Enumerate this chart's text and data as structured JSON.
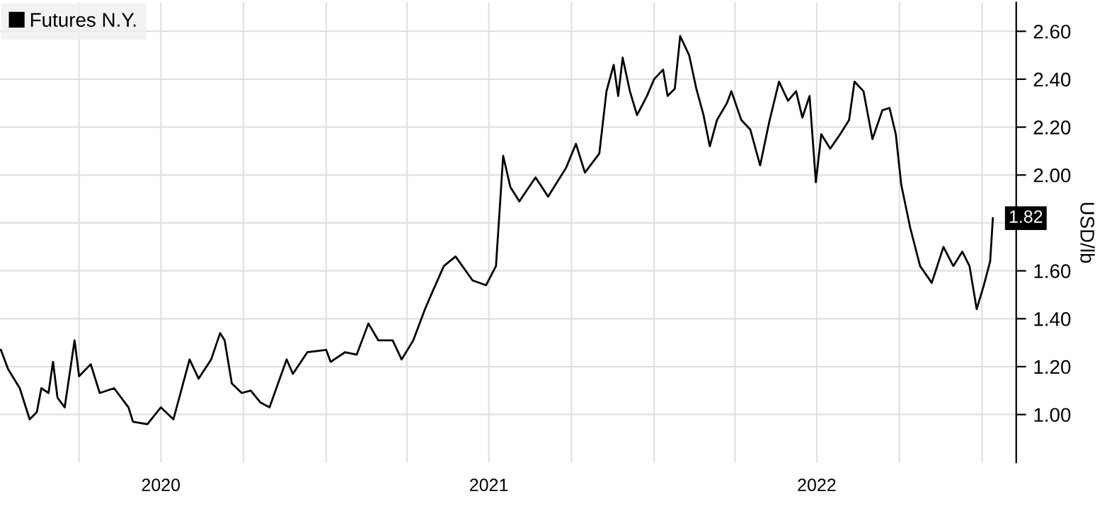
{
  "chart_data": {
    "type": "line",
    "x": [
      "2020-01-05",
      "2020-01-13",
      "2020-01-26",
      "2020-02-06",
      "2020-02-14",
      "2020-02-19",
      "2020-02-27",
      "2020-03-03",
      "2020-03-08",
      "2020-03-16",
      "2020-03-27",
      "2020-04-01",
      "2020-04-14",
      "2020-04-24",
      "2020-05-10",
      "2020-05-26",
      "2020-05-31",
      "2020-06-16",
      "2020-07-01",
      "2020-07-15",
      "2020-08-02",
      "2020-08-12",
      "2020-08-26",
      "2020-09-05",
      "2020-09-10",
      "2020-09-18",
      "2020-09-29",
      "2020-10-09",
      "2020-10-20",
      "2020-10-30",
      "2020-11-18",
      "2020-11-25",
      "2020-12-11",
      "2021-01-01",
      "2021-01-06",
      "2021-01-22",
      "2021-02-04",
      "2021-02-17",
      "2021-02-28",
      "2021-03-16",
      "2021-03-26",
      "2021-04-08",
      "2021-04-21",
      "2021-04-29",
      "2021-05-12",
      "2021-05-25",
      "2021-06-13",
      "2021-06-28",
      "2021-07-09",
      "2021-07-17",
      "2021-07-25",
      "2021-08-04",
      "2021-08-22",
      "2021-09-05",
      "2021-09-25",
      "2021-10-06",
      "2021-10-16",
      "2021-11-01",
      "2021-11-09",
      "2021-11-17",
      "2021-11-22",
      "2021-11-27",
      "2021-12-05",
      "2021-12-13",
      "2021-12-24",
      "2022-01-01",
      "2022-01-11",
      "2022-01-16",
      "2022-01-24",
      "2022-01-30",
      "2022-02-09",
      "2022-02-17",
      "2022-02-25",
      "2022-03-04",
      "2022-03-12",
      "2022-03-23",
      "2022-03-28",
      "2022-04-08",
      "2022-04-18",
      "2022-04-29",
      "2022-05-09",
      "2022-05-20",
      "2022-05-30",
      "2022-06-08",
      "2022-06-15",
      "2022-06-23",
      "2022-06-30",
      "2022-07-06",
      "2022-07-16",
      "2022-07-27",
      "2022-08-06",
      "2022-08-12",
      "2022-08-22",
      "2022-09-01",
      "2022-09-12",
      "2022-09-20",
      "2022-09-27",
      "2022-10-03",
      "2022-10-13",
      "2022-10-24",
      "2022-11-06",
      "2022-11-19",
      "2022-11-30",
      "2022-12-10",
      "2022-12-18",
      "2022-12-26",
      "2023-01-03",
      "2023-01-10",
      "2023-01-13"
    ],
    "series": [
      {
        "name": "Futures N.Y.",
        "color": "#000000",
        "values": [
          1.27,
          1.19,
          1.11,
          0.98,
          1.01,
          1.11,
          1.09,
          1.22,
          1.07,
          1.03,
          1.31,
          1.16,
          1.21,
          1.09,
          1.11,
          1.03,
          0.97,
          0.96,
          1.03,
          0.98,
          1.23,
          1.15,
          1.23,
          1.34,
          1.31,
          1.13,
          1.09,
          1.1,
          1.05,
          1.03,
          1.23,
          1.17,
          1.26,
          1.27,
          1.22,
          1.26,
          1.25,
          1.38,
          1.31,
          1.31,
          1.23,
          1.31,
          1.44,
          1.51,
          1.62,
          1.66,
          1.56,
          1.54,
          1.62,
          2.08,
          1.95,
          1.89,
          1.99,
          1.91,
          2.03,
          2.13,
          2.01,
          2.09,
          2.35,
          2.46,
          2.33,
          2.49,
          2.35,
          2.25,
          2.33,
          2.4,
          2.44,
          2.33,
          2.36,
          2.58,
          2.5,
          2.36,
          2.25,
          2.12,
          2.23,
          2.3,
          2.35,
          2.23,
          2.19,
          2.04,
          2.22,
          2.39,
          2.31,
          2.35,
          2.24,
          2.33,
          1.97,
          2.17,
          2.11,
          2.17,
          2.23,
          2.39,
          2.35,
          2.15,
          2.27,
          2.28,
          2.17,
          1.96,
          1.78,
          1.62,
          1.55,
          1.7,
          1.62,
          1.68,
          1.62,
          1.44,
          1.54,
          1.64,
          1.82
        ],
        "value_labels": [
          null,
          null,
          null,
          null,
          null,
          null,
          null,
          null,
          null,
          null,
          null,
          null,
          null,
          null,
          null,
          null,
          null,
          null,
          null,
          null,
          null,
          null,
          null,
          null,
          null,
          null,
          null,
          null,
          null,
          null,
          null,
          null,
          null,
          null,
          null,
          null,
          null,
          null,
          null,
          null,
          null,
          null,
          null,
          null,
          null,
          null,
          null,
          null,
          null,
          null,
          null,
          null,
          null,
          null,
          null,
          null,
          null,
          null,
          null,
          null,
          null,
          null,
          null,
          null,
          null,
          null,
          null,
          null,
          null,
          null,
          null,
          null,
          null,
          null,
          null,
          null,
          null,
          null,
          null,
          null,
          null,
          null,
          null,
          null,
          null,
          null,
          null,
          null,
          null,
          null,
          null,
          null,
          null,
          null,
          null,
          null,
          null,
          null,
          null,
          null,
          null,
          null,
          null,
          null,
          null,
          null,
          null,
          null,
          "1.82"
        ]
      }
    ],
    "ylabel": "USD/lb",
    "xlim": [
      "2020-01-04",
      "2023-02-08"
    ],
    "xticks": [
      {
        "value": "2020-04-01",
        "label": null
      },
      {
        "value": "2020-07-01",
        "label": "2020"
      },
      {
        "value": "2020-10-01",
        "label": null
      },
      {
        "value": "2021-01-01",
        "label": null
      },
      {
        "value": "2021-04-01",
        "label": null
      },
      {
        "value": "2021-07-01",
        "label": "2021"
      },
      {
        "value": "2021-10-01",
        "label": null
      },
      {
        "value": "2022-01-01",
        "label": null
      },
      {
        "value": "2022-04-01",
        "label": null
      },
      {
        "value": "2022-07-01",
        "label": "2022"
      },
      {
        "value": "2022-10-01",
        "label": null
      },
      {
        "value": "2023-01-01",
        "label": null
      }
    ],
    "ylim": [
      0.8,
      2.72
    ],
    "yticks": [
      {
        "value": 1.0,
        "label": "1.00"
      },
      {
        "value": 1.2,
        "label": "1.20"
      },
      {
        "value": 1.4,
        "label": "1.40"
      },
      {
        "value": 1.6,
        "label": "1.60"
      },
      {
        "value": 1.8,
        "label": null
      },
      {
        "value": 2.0,
        "label": "2.00"
      },
      {
        "value": 2.2,
        "label": "2.20"
      },
      {
        "value": 2.4,
        "label": "2.40"
      },
      {
        "value": 2.6,
        "label": "2.60"
      }
    ],
    "grid": true,
    "legend": "top left",
    "marker": "none",
    "line_style": "solid"
  }
}
